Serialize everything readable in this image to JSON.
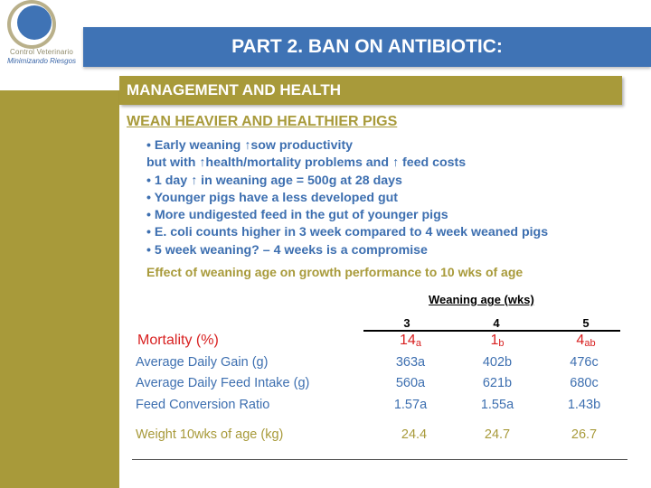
{
  "logo": {
    "line1": "Control Veterinario",
    "line2": "Minimizando Riesgos"
  },
  "title": "PART 2. BAN ON ANTIBIOTIC:",
  "section_header": "MANAGEMENT AND HEALTH",
  "subheading": "WEAN HEAVIER AND HEALTHIER PIGS",
  "bullets": [
    "• Early weaning ↑sow productivity",
    "but with ↑health/mortality problems and ↑ feed costs",
    "• 1 day ↑ in weaning age = 500g at 28 days",
    "• Younger pigs have a less developed gut",
    "• More undigested feed in the gut of younger pigs",
    "• E. coli counts higher in 3 week compared to 4 week weaned pigs",
    "• 5 week weaning? – 4 weeks is a compromise"
  ],
  "caption": "Effect of weaning age on growth performance to 10 wks of age",
  "table": {
    "group_label": "Weaning age (wks)",
    "columns": [
      "3",
      "4",
      "5"
    ],
    "mortality": {
      "label": "Mortality (%)",
      "values": [
        "14",
        "1",
        "4"
      ],
      "letters": [
        "a",
        "b",
        "ab"
      ]
    },
    "rows": [
      {
        "label": "Average Daily Gain (g)",
        "values": [
          "363a",
          "402b",
          "476c"
        ]
      },
      {
        "label": "Average Daily Feed Intake (g)",
        "values": [
          "560a",
          "621b",
          "680c"
        ]
      },
      {
        "label": "Feed Conversion Ratio",
        "values": [
          "1.57a",
          "1.55a",
          "1.43b"
        ]
      }
    ],
    "weight": {
      "label": "Weight 10wks of age (kg)",
      "values": [
        "24.4",
        "24.7",
        "26.7"
      ]
    }
  },
  "colors": {
    "blue": "#3f73b5",
    "olive": "#a89a3a",
    "red": "#d82020"
  }
}
